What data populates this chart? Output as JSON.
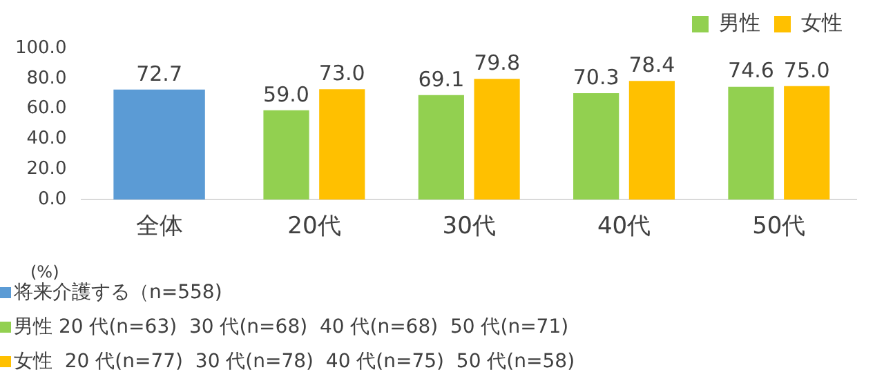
{
  "chart_data": {
    "type": "bar",
    "categories": [
      "全体",
      "20代",
      "30代",
      "40代",
      "50代"
    ],
    "series": [
      {
        "color": "#5b9bd5",
        "values": [
          72.7,
          null,
          null,
          null,
          null
        ],
        "value_labels": [
          "72.7",
          null,
          null,
          null,
          null
        ]
      },
      {
        "name": "男性",
        "color": "#92d050",
        "values": [
          null,
          59.0,
          69.1,
          70.3,
          74.6
        ],
        "value_labels": [
          null,
          "59.0",
          "69.1",
          "70.3",
          "74.6"
        ]
      },
      {
        "name": "女性",
        "color": "#ffc000",
        "values": [
          null,
          73.0,
          79.8,
          78.4,
          75.0
        ],
        "value_labels": [
          null,
          "73.0",
          "79.8",
          "78.4",
          "75.0"
        ]
      }
    ],
    "ylim": [
      0,
      100
    ],
    "yticks": [
      {
        "value": 0,
        "label": "0.0"
      },
      {
        "value": 20,
        "label": "20.0"
      },
      {
        "value": 40,
        "label": "40.0"
      },
      {
        "value": 60,
        "label": "60.0"
      },
      {
        "value": 80,
        "label": "80.0"
      },
      {
        "value": 100,
        "label": "100.0"
      }
    ],
    "ylabel": "(%)",
    "grid": false,
    "legend": "top right",
    "annotations": [
      "将来介護する（n=558)",
      "男性 20 代(n=63)  30 代(n=68)  40 代(n=68)  50 代(n=71)",
      "女性  20 代(n=77)  30 代(n=78)  40 代(n=75)  50 代(n=58)"
    ]
  }
}
